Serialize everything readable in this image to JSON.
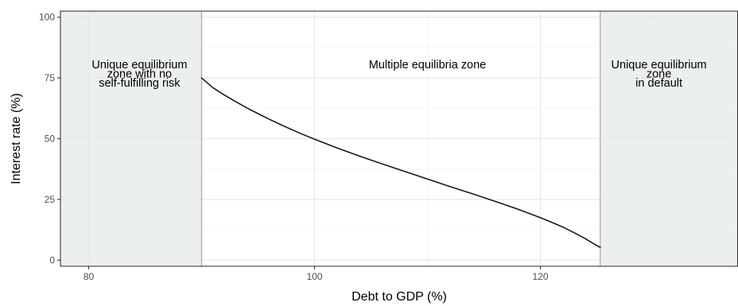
{
  "chart_data": {
    "type": "line",
    "title": "",
    "xlabel": "Debt to GDP (%)",
    "ylabel": "Interest rate (%)",
    "xlim": [
      77.5,
      137.5
    ],
    "ylim": [
      -2.5,
      102.5
    ],
    "x_ticks": [
      80,
      100,
      120
    ],
    "y_ticks": [
      0,
      25,
      50,
      75,
      100
    ],
    "x_minor_ticks": [
      90,
      110,
      130
    ],
    "y_minor_ticks": [
      12.5,
      37.5,
      62.5,
      87.5
    ],
    "grid": true,
    "legend": "none",
    "zones": [
      {
        "x0": 77.5,
        "x1": 90,
        "fill": "#ecf0ec",
        "label_lines": [
          "Unique equilibrium",
          "zone with no",
          "self-fulfilling risk"
        ],
        "label_x": 84.5
      },
      {
        "x0": 90,
        "x1": 125.3,
        "fill": "#ffffff",
        "label_lines": [
          "Multiple equilibria zone"
        ],
        "label_x": 110
      },
      {
        "x0": 125.3,
        "x1": 137.5,
        "fill": "#ecf0ec",
        "label_lines": [
          "Unique equilibrium",
          "zone",
          "in default"
        ],
        "label_x": 130.5
      }
    ],
    "label_top_y": 79,
    "boundaries": [
      90,
      125.3
    ],
    "series": [
      {
        "color": "#1a1a1a",
        "x": [
          90,
          90.5,
          91,
          92,
          93,
          94,
          95,
          96,
          97,
          98,
          99,
          100,
          102,
          104,
          106,
          108,
          110,
          112,
          114,
          116,
          118,
          120,
          121,
          122,
          123,
          124,
          125,
          125.3
        ],
        "y": [
          75,
          73.0,
          71.0,
          68.0,
          65.3,
          62.7,
          60.3,
          58.0,
          55.8,
          53.7,
          51.7,
          49.8,
          46.2,
          42.8,
          39.6,
          36.5,
          33.4,
          30.3,
          27.3,
          24.2,
          21.0,
          17.5,
          15.6,
          13.6,
          11.3,
          8.8,
          6.0,
          5.3
        ]
      }
    ]
  }
}
